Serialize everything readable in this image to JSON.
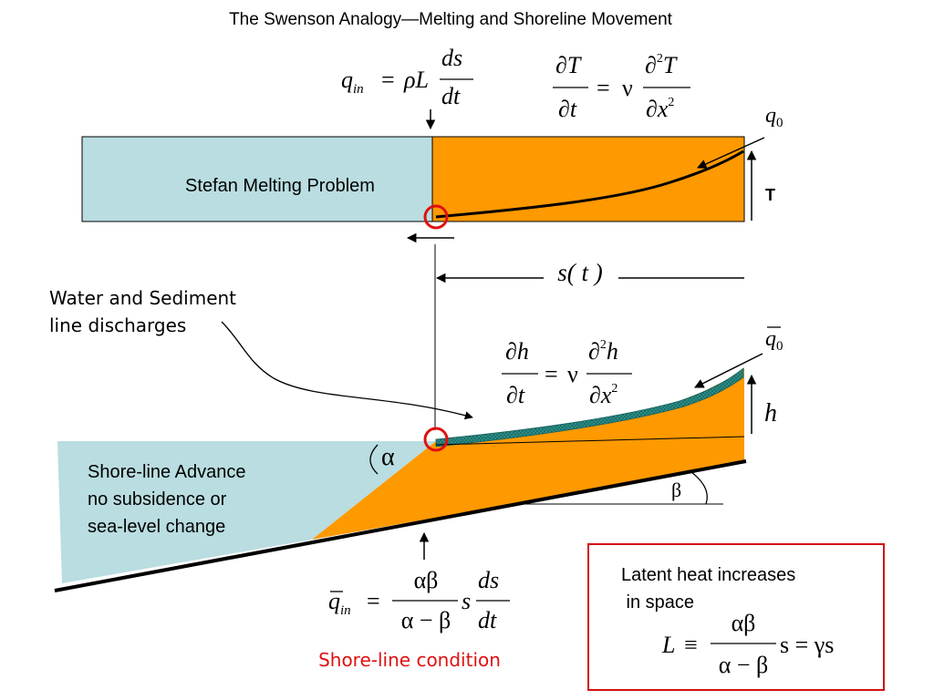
{
  "title": "The Swenson Analogy—Melting and Shoreline Movement",
  "stefan": {
    "label": "Stefan Melting Problem",
    "t_axis_label": "T",
    "q0": "q",
    "q0_sub": "0",
    "eq_qin": {
      "q": "q",
      "q_sub": "in",
      "eq": "=",
      "rhoL": "ρL",
      "num": "ds",
      "den": "dt"
    },
    "eq_heat": {
      "num_l": "∂T",
      "den_l": "∂t",
      "eq": "=",
      "nu": "ν",
      "num_r": "∂",
      "num_r_sup": "2",
      "num_r_var": "T",
      "den_r": "∂x",
      "den_r_sup": "2"
    }
  },
  "s_label": "s( t )",
  "water_label": [
    "Water and Sediment",
    "line discharges"
  ],
  "shore": {
    "q0bar": "q",
    "q0bar_sub": "0",
    "h_label": "h",
    "alpha": "α",
    "beta": "β",
    "advance_label": [
      "Shore-line Advance",
      "no subsidence or",
      "sea-level change"
    ],
    "eq_h": {
      "num_l": "∂h",
      "den_l": "∂t",
      "eq": "=",
      "nu": "ν",
      "num_r": "∂",
      "num_r_sup": "2",
      "num_r_var": "h",
      "den_r": "∂x",
      "den_r_sup": "2"
    },
    "eq_qin": {
      "q": "q",
      "q_sub": "in",
      "eq": "=",
      "num": "αβ",
      "den": "α − β",
      "s": "s",
      "num2": "ds",
      "den2": "dt"
    },
    "condition": "Shore-line condition"
  },
  "latent": {
    "text": [
      "Latent heat increases",
      " in space"
    ],
    "eq": {
      "L": "L",
      "equiv": "≡",
      "num": "αβ",
      "den": "α − β",
      "rest": "s = γs"
    }
  },
  "colors": {
    "ice": "#b9dde0",
    "sediment": "#ff9900",
    "teal": "#2b8c86",
    "marker": "#e01010",
    "condition_text": "#e01010",
    "box_border": "#d41010"
  }
}
